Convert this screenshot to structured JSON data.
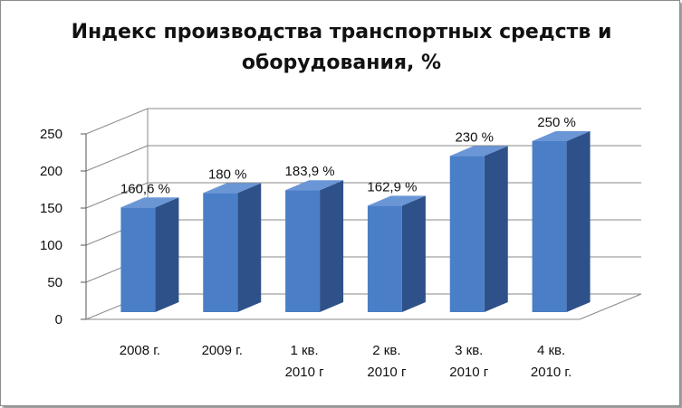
{
  "chart_data": {
    "type": "bar",
    "title": "Индекс производства транспортных средств и оборудования, %",
    "categories": [
      [
        "2008 г."
      ],
      [
        "2009 г."
      ],
      [
        "1 кв.",
        "2010 г"
      ],
      [
        "2 кв.",
        "2010 г"
      ],
      [
        "3 кв.",
        "2010 г"
      ],
      [
        "4 кв.",
        "2010 г."
      ]
    ],
    "values": [
      160.6,
      180,
      183.9,
      162.9,
      230,
      250
    ],
    "data_labels": [
      "160,6 %",
      "180 %",
      "183,9 %",
      "162,9 %",
      "230 %",
      "250 %"
    ],
    "y_ticks": [
      "0",
      "50",
      "100",
      "150",
      "200",
      "250"
    ],
    "ylim": [
      0,
      250
    ],
    "xlabel": "",
    "ylabel": "",
    "grid": true,
    "legend": "none",
    "three_d": true,
    "colors": {
      "bar_front": "#4a7ec7",
      "bar_side": "#2e5189",
      "bar_top": "#6a96d6",
      "grid": "#8a8a8a",
      "axis": "#555555"
    }
  }
}
